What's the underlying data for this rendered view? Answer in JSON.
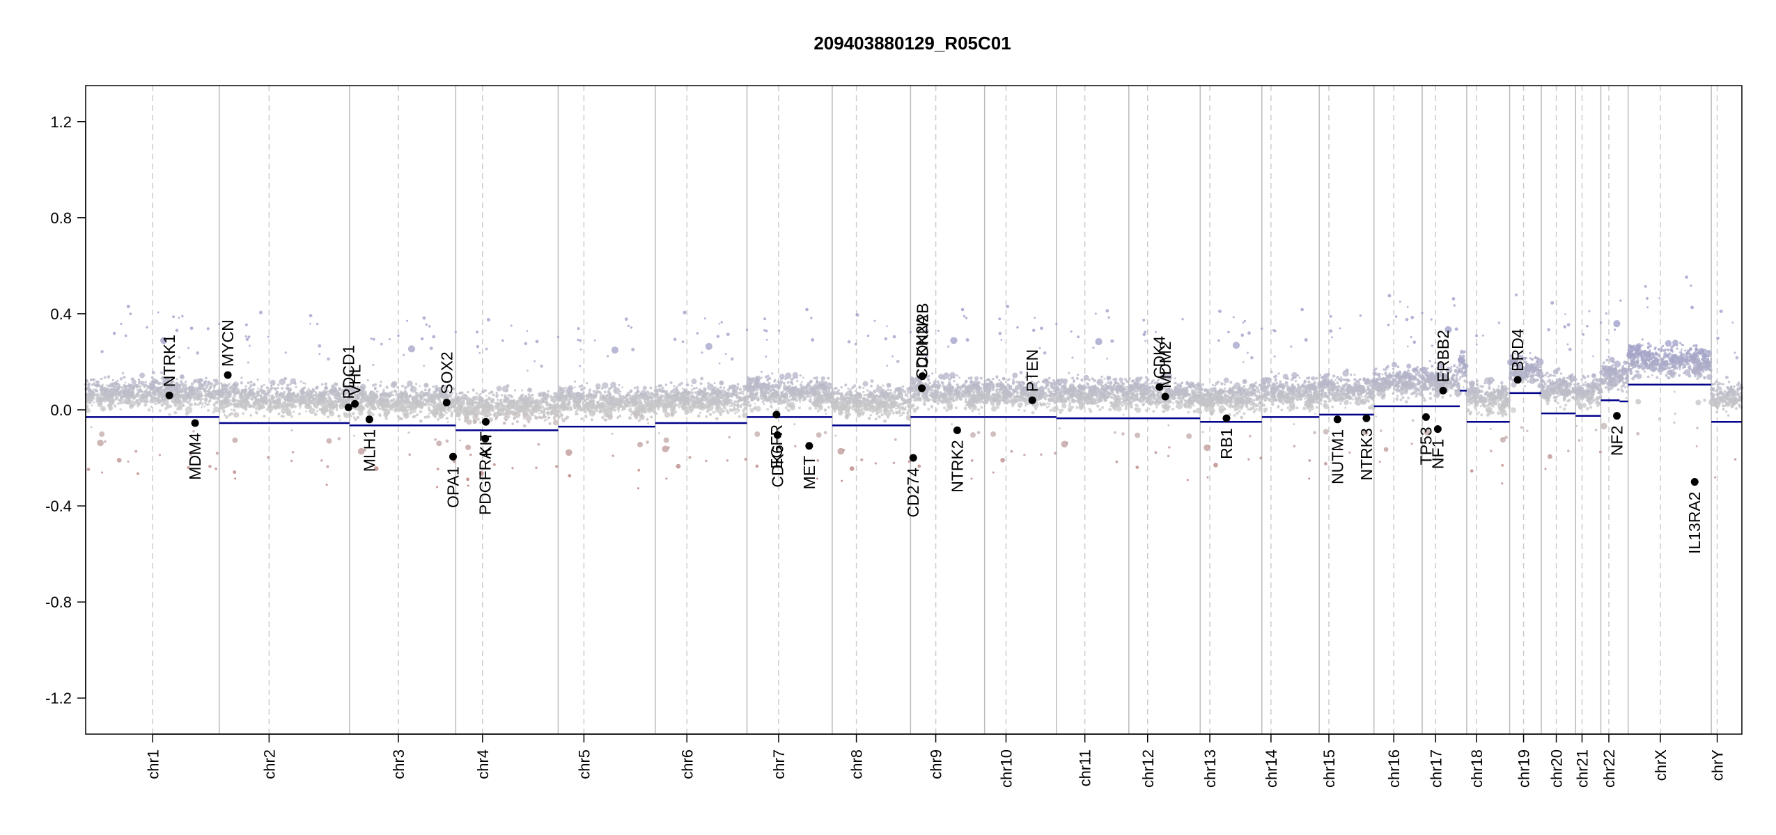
{
  "chart_data": {
    "type": "scatter",
    "title": "209403880129_R05C01",
    "xlabel": "",
    "ylabel": "",
    "ylim": [
      -1.35,
      1.35
    ],
    "yticks": [
      -1.2,
      -0.8,
      -0.4,
      0.0,
      0.4,
      0.8,
      1.2
    ],
    "ytick_labels": [
      "-1.2",
      "-0.8",
      "-0.4",
      "0.0",
      "0.4",
      "0.8",
      "1.2"
    ],
    "grid": false,
    "colors": {
      "gain": "#9a9ac8",
      "neutral": "#c8c8c8",
      "loss": "#b06060",
      "segment": "#00008b",
      "chromosome_boundary": "#bbbbbb",
      "centromere": "#cccccc",
      "gene_point": "#000000"
    },
    "chromosomes": [
      {
        "name": "chr1",
        "start": 0,
        "end": 249,
        "centromere": 125,
        "segments": [
          {
            "start": 0,
            "end": 249,
            "value": -0.03
          }
        ]
      },
      {
        "name": "chr2",
        "start": 249,
        "end": 492,
        "centromere": 342,
        "segments": [
          {
            "start": 249,
            "end": 492,
            "value": -0.055
          }
        ]
      },
      {
        "name": "chr3",
        "start": 492,
        "end": 690,
        "centromere": 583,
        "segments": [
          {
            "start": 492,
            "end": 690,
            "value": -0.065
          }
        ]
      },
      {
        "name": "chr4",
        "start": 690,
        "end": 881,
        "centromere": 740,
        "segments": [
          {
            "start": 690,
            "end": 881,
            "value": -0.085
          }
        ]
      },
      {
        "name": "chr5",
        "start": 881,
        "end": 1062,
        "centromere": 929,
        "segments": [
          {
            "start": 881,
            "end": 1062,
            "value": -0.07
          }
        ]
      },
      {
        "name": "chr6",
        "start": 1062,
        "end": 1233,
        "centromere": 1121,
        "segments": [
          {
            "start": 1062,
            "end": 1233,
            "value": -0.055
          }
        ]
      },
      {
        "name": "chr7",
        "start": 1233,
        "end": 1392,
        "centromere": 1292,
        "segments": [
          {
            "start": 1233,
            "end": 1392,
            "value": -0.03
          }
        ]
      },
      {
        "name": "chr8",
        "start": 1392,
        "end": 1538,
        "centromere": 1437,
        "segments": [
          {
            "start": 1392,
            "end": 1538,
            "value": -0.065
          }
        ]
      },
      {
        "name": "chr9",
        "start": 1538,
        "end": 1676,
        "centromere": 1585,
        "segments": [
          {
            "start": 1538,
            "end": 1676,
            "value": -0.03
          }
        ]
      },
      {
        "name": "chr10",
        "start": 1676,
        "end": 1810,
        "centromere": 1716,
        "segments": [
          {
            "start": 1676,
            "end": 1810,
            "value": -0.03
          }
        ]
      },
      {
        "name": "chr11",
        "start": 1810,
        "end": 1945,
        "centromere": 1863,
        "segments": [
          {
            "start": 1810,
            "end": 1945,
            "value": -0.035
          }
        ]
      },
      {
        "name": "chr12",
        "start": 1945,
        "end": 2078,
        "centromere": 1980,
        "segments": [
          {
            "start": 1945,
            "end": 2078,
            "value": -0.035
          }
        ]
      },
      {
        "name": "chr13",
        "start": 2078,
        "end": 2193,
        "centromere": 2096,
        "segments": [
          {
            "start": 2078,
            "end": 2193,
            "value": -0.05
          }
        ]
      },
      {
        "name": "chr14",
        "start": 2193,
        "end": 2300,
        "centromere": 2210,
        "segments": [
          {
            "start": 2193,
            "end": 2300,
            "value": -0.03
          }
        ]
      },
      {
        "name": "chr15",
        "start": 2300,
        "end": 2402,
        "centromere": 2318,
        "segments": [
          {
            "start": 2300,
            "end": 2402,
            "value": -0.02
          }
        ]
      },
      {
        "name": "chr16",
        "start": 2402,
        "end": 2492,
        "centromere": 2439,
        "segments": [
          {
            "start": 2402,
            "end": 2492,
            "value": 0.015
          }
        ]
      },
      {
        "name": "chr17",
        "start": 2492,
        "end": 2575,
        "centromere": 2517,
        "segments": [
          {
            "start": 2492,
            "end": 2562,
            "value": 0.015
          },
          {
            "start": 2562,
            "end": 2575,
            "value": 0.08
          }
        ]
      },
      {
        "name": "chr18",
        "start": 2575,
        "end": 2655,
        "centromere": 2593,
        "segments": [
          {
            "start": 2575,
            "end": 2655,
            "value": -0.05
          }
        ]
      },
      {
        "name": "chr19",
        "start": 2655,
        "end": 2714,
        "centromere": 2681,
        "segments": [
          {
            "start": 2655,
            "end": 2714,
            "value": 0.07
          }
        ]
      },
      {
        "name": "chr20",
        "start": 2714,
        "end": 2778,
        "centromere": 2742,
        "segments": [
          {
            "start": 2714,
            "end": 2778,
            "value": -0.015
          }
        ]
      },
      {
        "name": "chr21",
        "start": 2778,
        "end": 2825,
        "centromere": 2790,
        "segments": [
          {
            "start": 2778,
            "end": 2825,
            "value": -0.025
          }
        ]
      },
      {
        "name": "chr22",
        "start": 2825,
        "end": 2876,
        "centromere": 2840,
        "segments": [
          {
            "start": 2825,
            "end": 2860,
            "value": 0.04
          },
          {
            "start": 2860,
            "end": 2876,
            "value": 0.035
          }
        ]
      },
      {
        "name": "chrX",
        "start": 2876,
        "end": 3031,
        "centromere": 2936,
        "segments": [
          {
            "start": 2876,
            "end": 3031,
            "value": 0.105
          }
        ]
      },
      {
        "name": "chrY",
        "start": 3031,
        "end": 3088,
        "centromere": 3042,
        "segments": [
          {
            "start": 3031,
            "end": 3088,
            "value": -0.05
          }
        ]
      }
    ],
    "genes": [
      {
        "name": "NTRK1",
        "chrom": "chr1",
        "pos": 156,
        "value": 0.06,
        "label_side": "above"
      },
      {
        "name": "MDM4",
        "chrom": "chr1",
        "pos": 204,
        "value": -0.055,
        "label_side": "below"
      },
      {
        "name": "MYCN",
        "chrom": "chr2",
        "pos": 265,
        "value": 0.145,
        "label_side": "above"
      },
      {
        "name": "PDCD1",
        "chrom": "chr2",
        "pos": 490,
        "value": 0.01,
        "label_side": "above"
      },
      {
        "name": "VHL",
        "chrom": "chr3",
        "pos": 502,
        "value": 0.025,
        "label_side": "above"
      },
      {
        "name": "MLH1",
        "chrom": "chr3",
        "pos": 529,
        "value": -0.04,
        "label_side": "below"
      },
      {
        "name": "SOX2",
        "chrom": "chr3",
        "pos": 673,
        "value": 0.03,
        "label_side": "above"
      },
      {
        "name": "OPA1",
        "chrom": "chr3",
        "pos": 685,
        "value": -0.195,
        "label_side": "below"
      },
      {
        "name": "PDGFRA",
        "chrom": "chr4",
        "pos": 745,
        "value": -0.12,
        "label_side": "below"
      },
      {
        "name": "KIT",
        "chrom": "chr4",
        "pos": 746,
        "value": -0.05,
        "label_side": "below"
      },
      {
        "name": "EGFR",
        "chrom": "chr7",
        "pos": 1288,
        "value": -0.02,
        "label_side": "below"
      },
      {
        "name": "CDK6",
        "chrom": "chr7",
        "pos": 1290,
        "value": -0.105,
        "label_side": "below"
      },
      {
        "name": "MET",
        "chrom": "chr7",
        "pos": 1349,
        "value": -0.15,
        "label_side": "below"
      },
      {
        "name": "CD274",
        "chrom": "chr9",
        "pos": 1543,
        "value": -0.2,
        "label_side": "below"
      },
      {
        "name": "CDKN2A",
        "chrom": "chr9",
        "pos": 1559,
        "value": 0.09,
        "label_side": "above"
      },
      {
        "name": "CDKN2B",
        "chrom": "chr9",
        "pos": 1560,
        "value": 0.14,
        "label_side": "above"
      },
      {
        "name": "NTRK2",
        "chrom": "chr9",
        "pos": 1625,
        "value": -0.085,
        "label_side": "below"
      },
      {
        "name": "PTEN",
        "chrom": "chr10",
        "pos": 1765,
        "value": 0.04,
        "label_side": "above"
      },
      {
        "name": "CDK4",
        "chrom": "chr12",
        "pos": 2002,
        "value": 0.095,
        "label_side": "above"
      },
      {
        "name": "MDM2",
        "chrom": "chr12",
        "pos": 2013,
        "value": 0.055,
        "label_side": "above"
      },
      {
        "name": "RB1",
        "chrom": "chr13",
        "pos": 2127,
        "value": -0.035,
        "label_side": "below"
      },
      {
        "name": "NUTM1",
        "chrom": "chr15",
        "pos": 2334,
        "value": -0.04,
        "label_side": "below"
      },
      {
        "name": "NTRK3",
        "chrom": "chr15",
        "pos": 2388,
        "value": -0.035,
        "label_side": "below"
      },
      {
        "name": "TP53",
        "chrom": "chr17",
        "pos": 2499,
        "value": -0.03,
        "label_side": "below"
      },
      {
        "name": "NF1",
        "chrom": "chr17",
        "pos": 2521,
        "value": -0.08,
        "label_side": "below"
      },
      {
        "name": "ERBB2",
        "chrom": "chr17",
        "pos": 2531,
        "value": 0.08,
        "label_side": "above"
      },
      {
        "name": "BRD4",
        "chrom": "chr19",
        "pos": 2670,
        "value": 0.125,
        "label_side": "above"
      },
      {
        "name": "NF2",
        "chrom": "chr22",
        "pos": 2855,
        "value": -0.025,
        "label_side": "below"
      },
      {
        "name": "IL13RA2",
        "chrom": "chrX",
        "pos": 3000,
        "value": -0.3,
        "label_side": "below"
      }
    ]
  }
}
